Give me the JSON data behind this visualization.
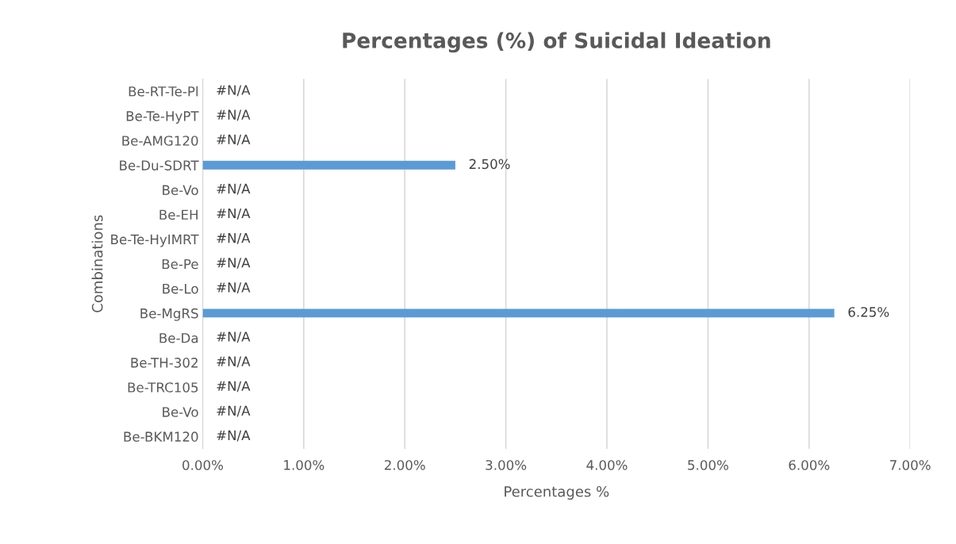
{
  "chart_data": {
    "type": "bar",
    "orientation": "horizontal",
    "title": "Percentages (%) of Suicidal Ideation",
    "xlabel": "Percentages %",
    "ylabel": "Combinations",
    "categories": [
      "Be-RT-Te-Pl",
      "Be-Te-HyPT",
      "Be-AMG120",
      "Be-Du-SDRT",
      "Be-Vo",
      "Be-EH",
      "Be-Te-HyIMRT",
      "Be-Pe",
      "Be-Lo",
      "Be-MgRS",
      "Be-Da",
      "Be-TH-302",
      "Be-TRC105",
      "Be-Vo",
      "Be-BKM120"
    ],
    "values": [
      null,
      null,
      null,
      2.5,
      null,
      null,
      null,
      null,
      null,
      6.25,
      null,
      null,
      null,
      null,
      null
    ],
    "value_labels": [
      "#N/A",
      "#N/A",
      "#N/A",
      "2.50%",
      "#N/A",
      "#N/A",
      "#N/A",
      "#N/A",
      "#N/A",
      "6.25%",
      "#N/A",
      "#N/A",
      "#N/A",
      "#N/A",
      "#N/A"
    ],
    "color": "#5b9bd5",
    "xlim": [
      0,
      7
    ],
    "xticks": [
      {
        "value": 0,
        "label": "0.00%"
      },
      {
        "value": 1,
        "label": "1.00%"
      },
      {
        "value": 2,
        "label": "2.00%"
      },
      {
        "value": 3,
        "label": "3.00%"
      },
      {
        "value": 4,
        "label": "4.00%"
      },
      {
        "value": 5,
        "label": "5.00%"
      },
      {
        "value": 6,
        "label": "6.00%"
      },
      {
        "value": 7,
        "label": "7.00%"
      }
    ],
    "grid": "x",
    "legend": false
  }
}
